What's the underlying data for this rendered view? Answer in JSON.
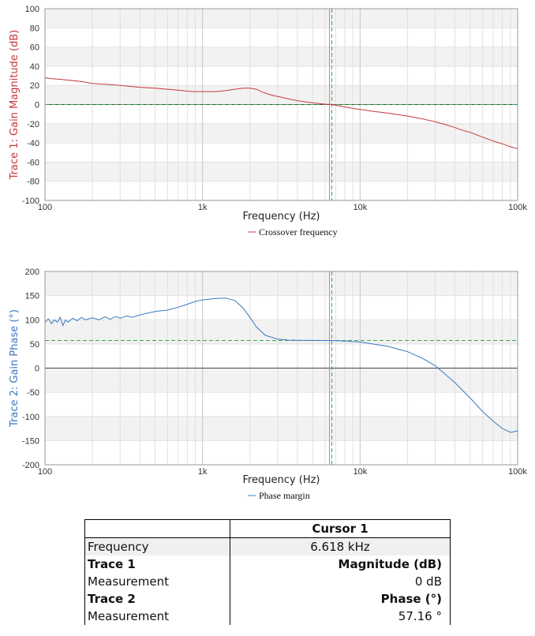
{
  "chart_data": [
    {
      "type": "line",
      "name": "gain-magnitude",
      "ylabel": "Trace 1: Gain Magnitude (dB)",
      "xlabel": "Frequency (Hz)",
      "xscale": "log",
      "xlim": [
        100,
        100000
      ],
      "ylim": [
        -100,
        100
      ],
      "yticks": [
        -100,
        -80,
        -60,
        -40,
        -20,
        0,
        20,
        40,
        60,
        80,
        100
      ],
      "xtick_labels": [
        {
          "x": 100,
          "label": "100"
        },
        {
          "x": 1000,
          "label": "1k"
        },
        {
          "x": 10000,
          "label": "10k"
        },
        {
          "x": 100000,
          "label": "100k"
        }
      ],
      "grid": true,
      "series_color": "#c8383c",
      "legend": {
        "label": "Crossover frequency",
        "placement": "bottom-center"
      },
      "cursor_x": 6618,
      "reference_y": 0,
      "series": [
        {
          "x": [
            100,
            110,
            120,
            130,
            150,
            170,
            200,
            250,
            300,
            400,
            500,
            600,
            700,
            800,
            900,
            1000,
            1100,
            1200,
            1400,
            1600,
            1800,
            2000,
            2200,
            2400,
            2600,
            2800,
            3000,
            3500,
            4000,
            4500,
            5000,
            5500,
            6000,
            6618,
            7000,
            8000,
            9000,
            10000,
            12000,
            15000,
            20000,
            25000,
            30000,
            35000,
            40000,
            45000,
            50000,
            60000,
            70000,
            80000,
            90000,
            100000
          ],
          "y": [
            28,
            27,
            26.5,
            26,
            25,
            24,
            22,
            21,
            20,
            18,
            17,
            16,
            15,
            14,
            13.5,
            13.5,
            13.5,
            13.5,
            14.5,
            16,
            17,
            17,
            16,
            13,
            11,
            9.5,
            8.5,
            6,
            4,
            2.8,
            1.8,
            1,
            0.4,
            0,
            -0.7,
            -2.5,
            -4,
            -5,
            -7,
            -9,
            -12,
            -15,
            -18,
            -21,
            -24,
            -27,
            -29,
            -34,
            -38,
            -41,
            -44,
            -46
          ]
        }
      ]
    },
    {
      "type": "line",
      "name": "gain-phase",
      "ylabel": "Trace 2: Gain Phase (°)",
      "xlabel": "Frequency (Hz)",
      "xscale": "log",
      "xlim": [
        100,
        100000
      ],
      "ylim": [
        -200,
        200
      ],
      "yticks": [
        -200,
        -150,
        -100,
        -50,
        0,
        50,
        100,
        150,
        200
      ],
      "xtick_labels": [
        {
          "x": 100,
          "label": "100"
        },
        {
          "x": 1000,
          "label": "1k"
        },
        {
          "x": 10000,
          "label": "10k"
        },
        {
          "x": 100000,
          "label": "100k"
        }
      ],
      "grid": true,
      "series_color": "#3a78c2",
      "legend": {
        "label": "Phase margin",
        "placement": "bottom-center"
      },
      "cursor_x": 6618,
      "reference_y": 57.16,
      "series": [
        {
          "x": [
            100,
            105,
            110,
            115,
            120,
            125,
            130,
            135,
            140,
            150,
            160,
            170,
            180,
            190,
            200,
            220,
            240,
            260,
            280,
            300,
            330,
            360,
            400,
            450,
            500,
            600,
            700,
            800,
            900,
            1000,
            1200,
            1400,
            1600,
            1800,
            2000,
            2200,
            2500,
            3000,
            3500,
            4000,
            5000,
            6000,
            6618,
            8000,
            10000,
            12000,
            15000,
            20000,
            25000,
            30000,
            40000,
            50000,
            60000,
            70000,
            80000,
            90000,
            100000
          ],
          "y": [
            95,
            102,
            92,
            100,
            95,
            105,
            88,
            100,
            95,
            103,
            98,
            105,
            100,
            102,
            104,
            100,
            106,
            101,
            107,
            103,
            108,
            105,
            110,
            114,
            117,
            120,
            126,
            132,
            138,
            141,
            144,
            145,
            140,
            125,
            105,
            85,
            68,
            60,
            58,
            57.5,
            57.3,
            57.2,
            57.16,
            56,
            54,
            50,
            45,
            34,
            20,
            5,
            -30,
            -62,
            -90,
            -110,
            -125,
            -133,
            -130
          ]
        }
      ]
    }
  ],
  "table": {
    "header": "Cursor 1",
    "rows": [
      {
        "label": "Frequency",
        "value": "6.618 kHz",
        "label_bold": false,
        "value_bold": false,
        "value_align": "center"
      },
      {
        "label": "Trace 1",
        "value": "Magnitude (dB)",
        "label_bold": true,
        "value_bold": true,
        "value_align": "right"
      },
      {
        "label": "Measurement",
        "value": "0 dB",
        "label_bold": false,
        "value_bold": false,
        "value_align": "right"
      },
      {
        "label": "Trace 2",
        "value": "Phase (°)",
        "label_bold": true,
        "value_bold": true,
        "value_align": "right"
      },
      {
        "label": "Measurement",
        "value": "57.16 °",
        "label_bold": false,
        "value_bold": false,
        "value_align": "right"
      }
    ]
  }
}
